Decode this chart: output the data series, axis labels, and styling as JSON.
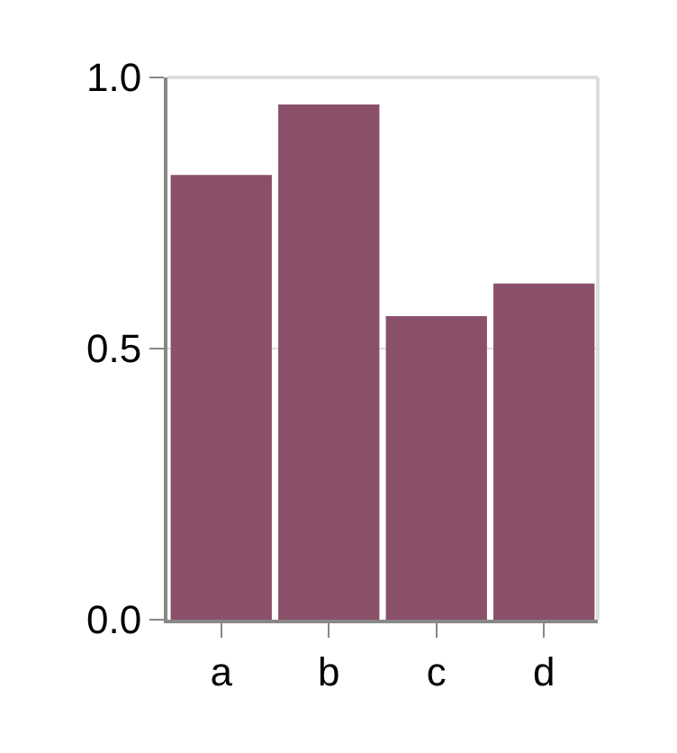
{
  "chart_data": {
    "type": "bar",
    "categories": [
      "a",
      "b",
      "c",
      "d"
    ],
    "values": [
      0.82,
      0.95,
      0.56,
      0.62
    ],
    "color": "#8a5069",
    "ylim": [
      0,
      1
    ],
    "yticks": [
      {
        "value": 0,
        "label": "0.0"
      },
      0.5,
      {
        "value": 1,
        "label": "1.0"
      }
    ],
    "grid": "y"
  }
}
